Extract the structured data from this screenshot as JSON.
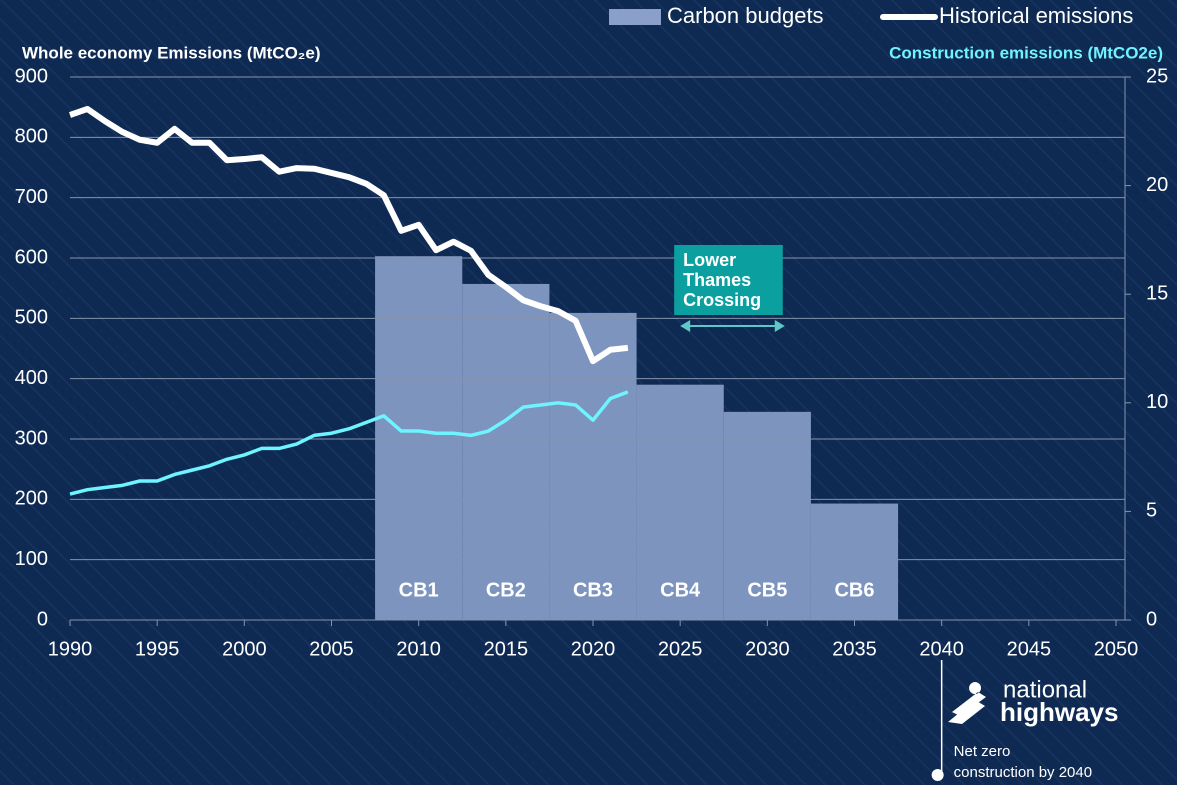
{
  "chart_data": {
    "type": "combo",
    "y_label": "Whole economy Emissions (MtCO₂e)",
    "y2_label": "Construction emissions (MtCO2e)",
    "xlim": [
      1990,
      2050
    ],
    "xticks": [
      1990,
      1995,
      2000,
      2005,
      2010,
      2015,
      2020,
      2025,
      2030,
      2035,
      2040,
      2045,
      2050
    ],
    "ylim": [
      0,
      900
    ],
    "yticks": [
      0,
      100,
      200,
      300,
      400,
      500,
      600,
      700,
      800,
      900
    ],
    "y2lim": [
      0,
      25
    ],
    "y2ticks": [
      0,
      5,
      10,
      15,
      20,
      25
    ],
    "grid": true,
    "legend": "top-right",
    "bars": {
      "name": "Carbon budgets",
      "color": "#8aa0cb",
      "categories": [
        "CB1",
        "CB2",
        "CB3",
        "CB4",
        "CB5",
        "CB6"
      ],
      "bins": [
        2007.5,
        2012.5,
        2017.5,
        2022.5,
        2027.5,
        2032.5,
        2037.5
      ],
      "values": [
        603,
        557,
        509,
        390,
        345,
        193
      ]
    },
    "x": [
      1990,
      1991,
      1992,
      1993,
      1994,
      1995,
      1996,
      1997,
      1998,
      1999,
      2000,
      2001,
      2002,
      2003,
      2004,
      2005,
      2006,
      2007,
      2008,
      2009,
      2010,
      2011,
      2012,
      2013,
      2014,
      2015,
      2016,
      2017,
      2018,
      2019,
      2020,
      2021,
      2022
    ],
    "series": [
      {
        "name": "Historical emissions",
        "color": "#ffffff",
        "axis": "y",
        "values": [
          837,
          847,
          827,
          809,
          796,
          791,
          814,
          791,
          791,
          762,
          764,
          767,
          743,
          749,
          748,
          741,
          734,
          723,
          704,
          645,
          655,
          613,
          627,
          612,
          572,
          552,
          530,
          520,
          512,
          496,
          429,
          448,
          451
        ]
      },
      {
        "color": "#6ff3ff",
        "axis": "y2",
        "values": [
          5.8,
          6.0,
          6.1,
          6.2,
          6.4,
          6.4,
          6.7,
          6.9,
          7.1,
          7.4,
          7.6,
          7.9,
          7.9,
          8.1,
          8.5,
          8.6,
          8.8,
          9.1,
          9.4,
          8.7,
          8.7,
          8.6,
          8.6,
          8.5,
          8.7,
          9.2,
          9.8,
          9.9,
          10.0,
          9.9,
          9.2,
          10.2,
          10.5
        ]
      }
    ],
    "annotations": [
      {
        "lines": [
          "Lower",
          "Thames",
          "Crossing"
        ],
        "x": [
          2025,
          2031
        ],
        "color": "#0c9f9f"
      },
      {
        "lines": [
          "Net zero",
          "construction by 2040"
        ],
        "x": 2040
      }
    ],
    "logo": {
      "lines": [
        "national",
        "highways"
      ]
    }
  }
}
